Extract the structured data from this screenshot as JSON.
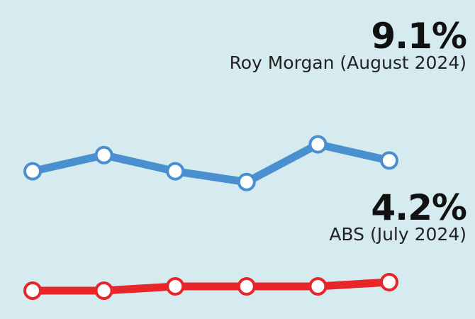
{
  "chart_data": {
    "type": "line",
    "series": [
      {
        "name": "Roy Morgan (August 2024)",
        "headline": "9.1%",
        "values": [
          8.9,
          9.2,
          8.9,
          8.7,
          9.4,
          9.1
        ],
        "color": "#4a90d0",
        "ylim": [
          8.0,
          10.5
        ]
      },
      {
        "name": "ABS (July 2024)",
        "headline": "4.2%",
        "values": [
          4.0,
          4.0,
          4.1,
          4.1,
          4.1,
          4.2
        ],
        "color": "#e8262a",
        "ylim": [
          3.0,
          5.5
        ]
      }
    ],
    "grid": false
  }
}
